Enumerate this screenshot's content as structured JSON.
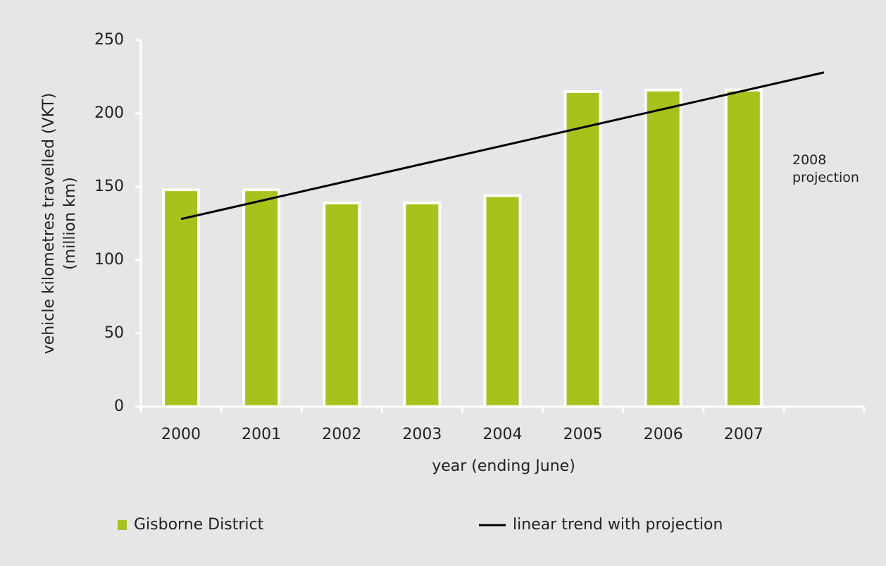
{
  "chart_data": {
    "type": "bar",
    "categories": [
      "2000",
      "2001",
      "2002",
      "2003",
      "2004",
      "2005",
      "2006",
      "2007",
      null
    ],
    "series": [
      {
        "name": "Gisborne District",
        "type": "bar",
        "color": "#a8c21c",
        "values": [
          148,
          148,
          139,
          139,
          144,
          215,
          216,
          216,
          null
        ]
      },
      {
        "name": "linear trend with projection",
        "type": "line",
        "color": "#000000",
        "values": [
          128,
          140.5,
          153,
          165.5,
          178,
          190.5,
          203,
          215.5,
          228
        ]
      }
    ],
    "x_label": "year (ending June)",
    "y_label": [
      "vehicle kilometres travelled (VKT)",
      "(million km)"
    ],
    "annotation": "2008 projection",
    "ylim": [
      0,
      250
    ],
    "yticks": [
      0,
      50,
      100,
      150,
      200,
      250
    ],
    "grid": false,
    "legend": "bottom"
  }
}
